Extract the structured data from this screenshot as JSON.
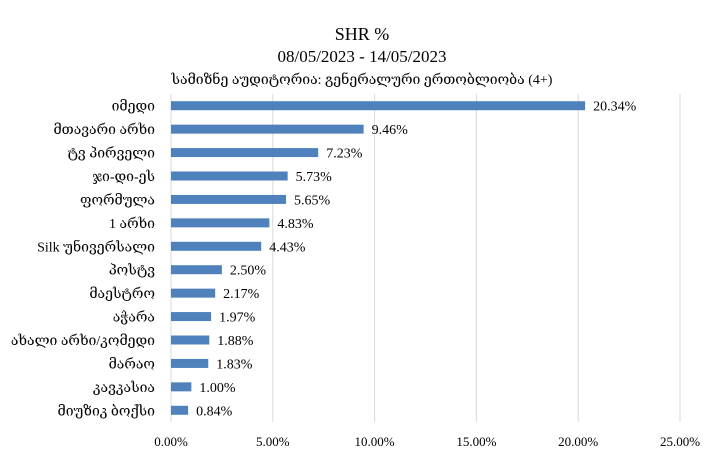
{
  "chart_data": {
    "type": "bar",
    "orientation": "horizontal",
    "title": "SHR %",
    "subtitle": "08/05/2023 - 14/05/2023",
    "subtitle2": "სამიზნე აუდიტორია: გენერალური ერთობლიობა (4+)",
    "categories": [
      "იმედი",
      "მთავარი არხი",
      "ტვ პირველი",
      "ჯი-დი-ეს",
      "ფორმულა",
      "1 არხი",
      "Silk უნივერსალი",
      "პოსტვ",
      "მაესტრო",
      "აჭარა",
      "ახალი არხი/კომედი",
      "მარაო",
      "კავკასია",
      "მიუზიკ ბოქსი"
    ],
    "values": [
      20.34,
      9.46,
      7.23,
      5.73,
      5.65,
      4.83,
      4.43,
      2.5,
      2.17,
      1.97,
      1.88,
      1.83,
      1.0,
      0.84
    ],
    "value_labels": [
      "20.34%",
      "9.46%",
      "7.23%",
      "5.73%",
      "5.65%",
      "4.83%",
      "4.43%",
      "2.50%",
      "2.17%",
      "1.97%",
      "1.88%",
      "1.83%",
      "1.00%",
      "0.84%"
    ],
    "x_ticks": [
      0,
      5,
      10,
      15,
      20,
      25
    ],
    "x_tick_labels": [
      "0.00%",
      "5.00%",
      "10.00%",
      "15.00%",
      "20.00%",
      "25.00%"
    ],
    "xlim": [
      0,
      25
    ],
    "xlabel": "",
    "ylabel": "",
    "grid": "vertical",
    "legend": "none",
    "bar_color": "#4f81bd",
    "grid_color": "#d9d9d9"
  }
}
